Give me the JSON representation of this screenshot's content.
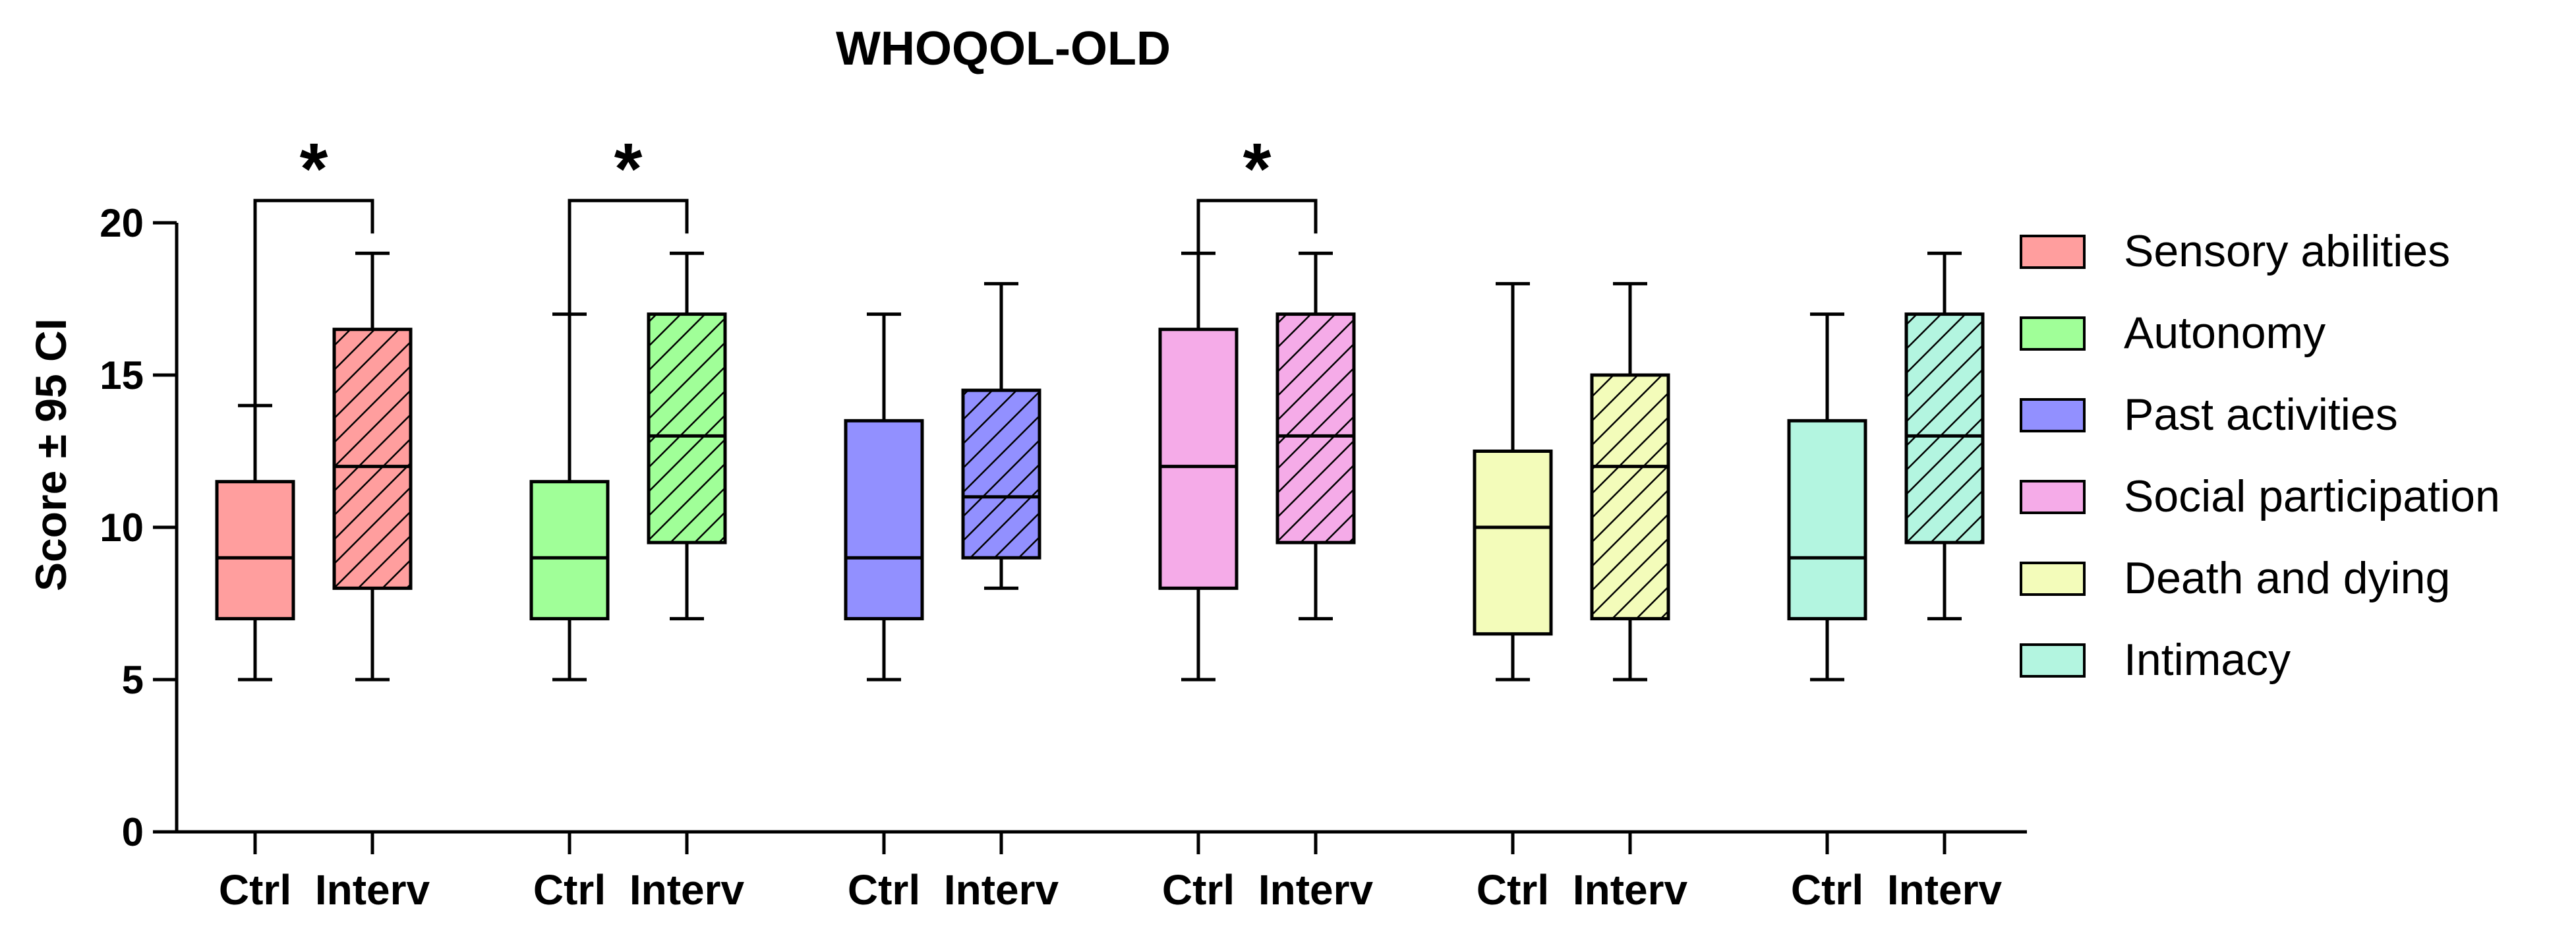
{
  "chart_data": {
    "type": "box",
    "title": "WHOQOL-OLD",
    "xlabel": "",
    "ylabel": "Score ± 95 CI",
    "ylim": [
      0,
      20
    ],
    "yticks": [
      0,
      5,
      10,
      15,
      20
    ],
    "categories": [
      "Ctrl",
      "Interv",
      "Ctrl",
      "Interv",
      "Ctrl",
      "Interv",
      "Ctrl",
      "Interv",
      "Ctrl",
      "Interv",
      "Ctrl",
      "Interv"
    ],
    "legend_position": "right",
    "series": [
      {
        "name": "Sensory abilities",
        "color": "#FF9E9E",
        "significant": true,
        "significance_label": "*",
        "groups": [
          {
            "label": "Ctrl",
            "hatched": false,
            "min": 5,
            "q1": 7,
            "median": 9,
            "q3": 11.5,
            "max": 14
          },
          {
            "label": "Interv",
            "hatched": true,
            "min": 5,
            "q1": 8,
            "median": 12,
            "q3": 16.5,
            "max": 19
          }
        ]
      },
      {
        "name": "Autonomy",
        "color": "#A0FF98",
        "significant": true,
        "significance_label": "*",
        "groups": [
          {
            "label": "Ctrl",
            "hatched": false,
            "min": 5,
            "q1": 7,
            "median": 9,
            "q3": 11.5,
            "max": 17
          },
          {
            "label": "Interv",
            "hatched": true,
            "min": 7,
            "q1": 9.5,
            "median": 13,
            "q3": 17,
            "max": 19
          }
        ]
      },
      {
        "name": "Past activities",
        "color": "#9290FF",
        "significant": false,
        "significance_label": "",
        "groups": [
          {
            "label": "Ctrl",
            "hatched": false,
            "min": 5,
            "q1": 7,
            "median": 9,
            "q3": 13.5,
            "max": 17
          },
          {
            "label": "Interv",
            "hatched": true,
            "min": 8,
            "q1": 9,
            "median": 11,
            "q3": 14.5,
            "max": 18
          }
        ]
      },
      {
        "name": "Social participation",
        "color": "#F5ABE8",
        "significant": true,
        "significance_label": "*",
        "groups": [
          {
            "label": "Ctrl",
            "hatched": false,
            "min": 5,
            "q1": 8,
            "median": 12,
            "q3": 16.5,
            "max": 19
          },
          {
            "label": "Interv",
            "hatched": true,
            "min": 7,
            "q1": 9.5,
            "median": 13,
            "q3": 17,
            "max": 19
          }
        ]
      },
      {
        "name": "Death and dying",
        "color": "#F3FCBA",
        "significant": false,
        "significance_label": "",
        "groups": [
          {
            "label": "Ctrl",
            "hatched": false,
            "min": 5,
            "q1": 6.5,
            "median": 10,
            "q3": 12.5,
            "max": 18
          },
          {
            "label": "Interv",
            "hatched": true,
            "min": 5,
            "q1": 7,
            "median": 12,
            "q3": 15,
            "max": 18
          }
        ]
      },
      {
        "name": "Intimacy",
        "color": "#B3F5E0",
        "significant": false,
        "significance_label": "",
        "groups": [
          {
            "label": "Ctrl",
            "hatched": false,
            "min": 5,
            "q1": 7,
            "median": 9,
            "q3": 13.5,
            "max": 17
          },
          {
            "label": "Interv",
            "hatched": true,
            "min": 7,
            "q1": 9.5,
            "median": 13,
            "q3": 17,
            "max": 19
          }
        ]
      }
    ]
  }
}
